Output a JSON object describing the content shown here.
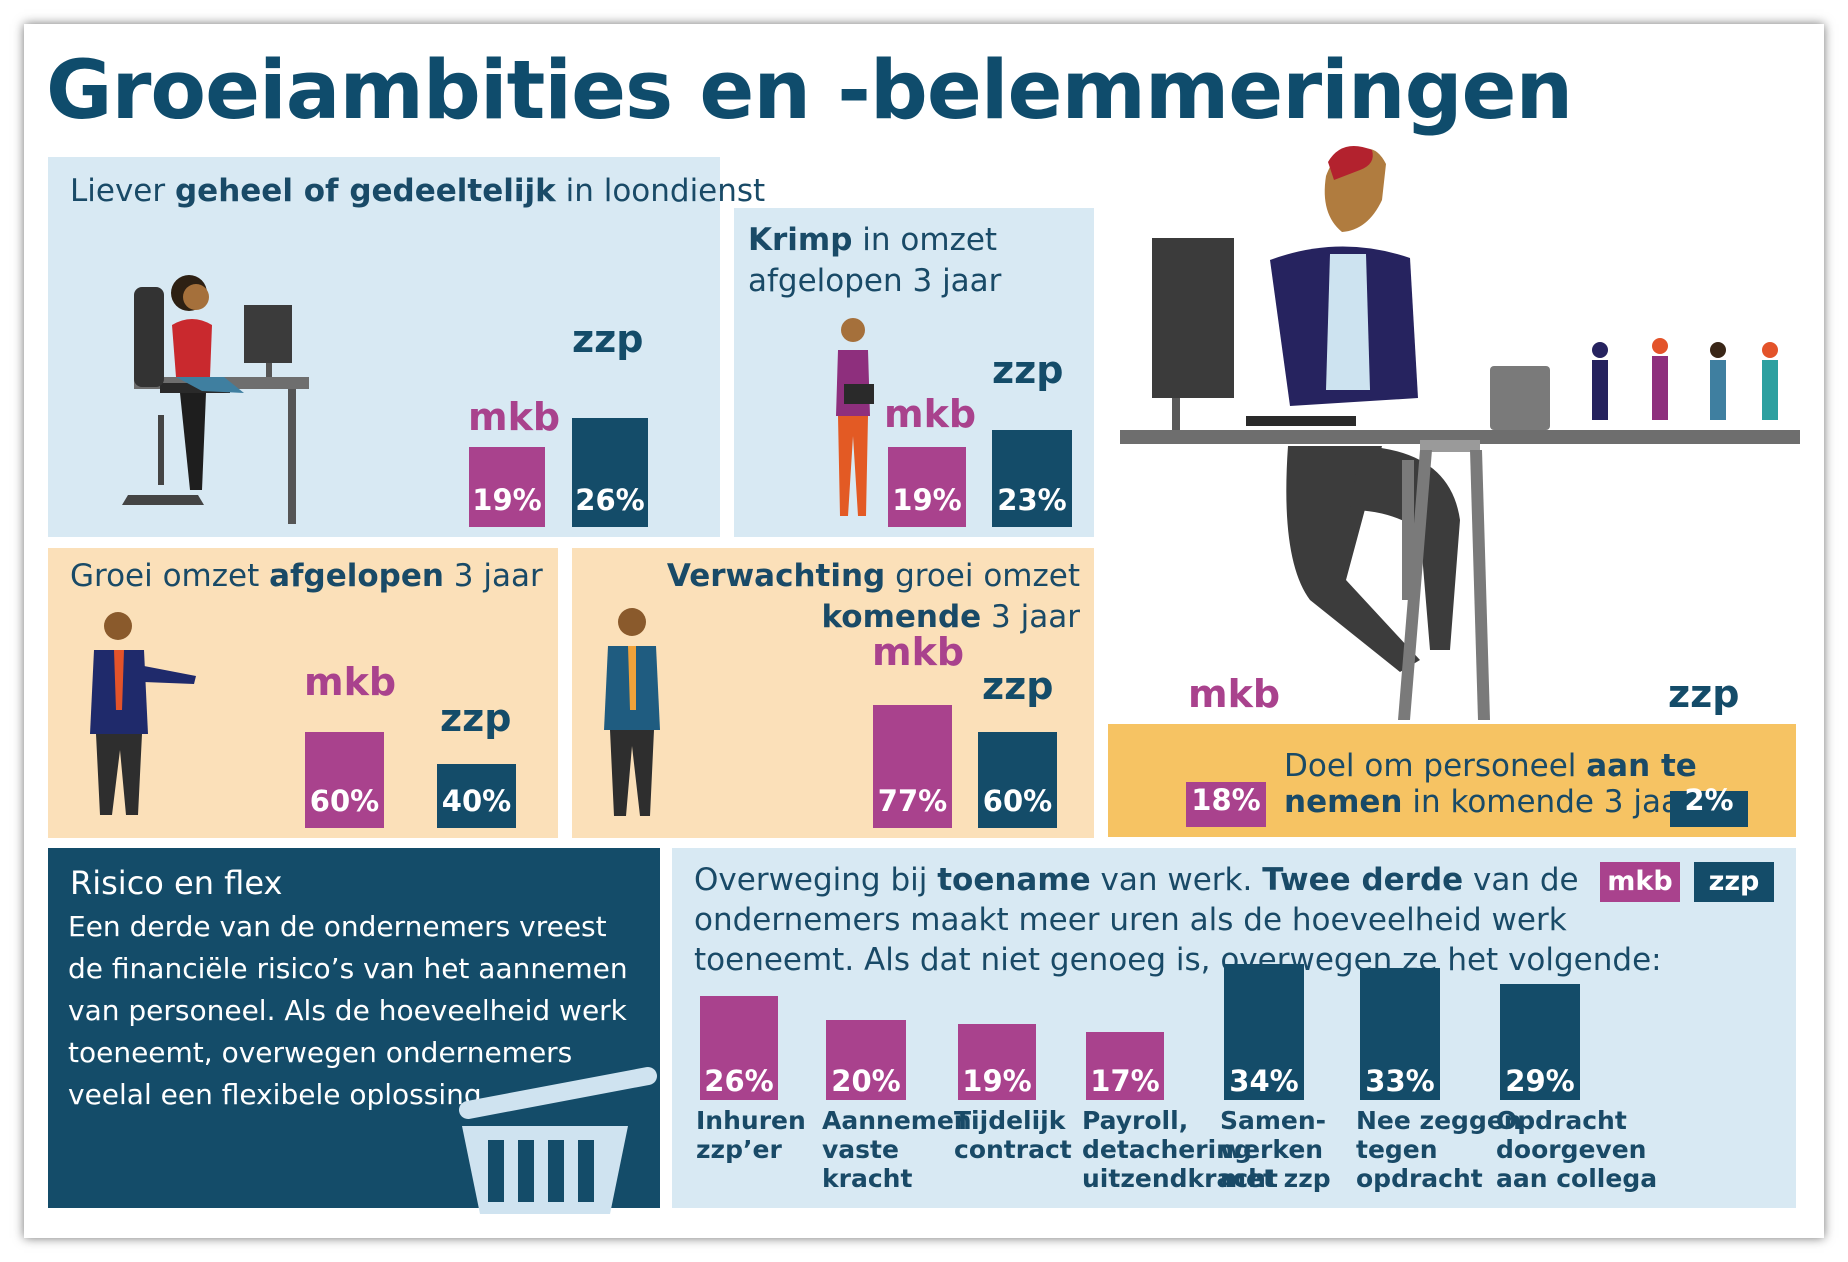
{
  "title": "Groeiambities en -belemmeringen",
  "colors": {
    "mkb": "#a9428d",
    "zzp": "#144c69",
    "light_blue": "#d8e9f3",
    "peach": "#fbe0b9",
    "orange": "#f6c363"
  },
  "labels": {
    "mkb": "mkb",
    "zzp": "zzp"
  },
  "panel_loondienst": {
    "pre": "Liever ",
    "bold": "geheel of gedeeltelijk",
    "post": " in loondienst",
    "mkb_label": "19%",
    "zzp_label": "26%"
  },
  "panel_krimp": {
    "bold": "Krimp",
    "line1": " in omzet",
    "line2": "afgelopen 3 jaar",
    "mkb_label": "19%",
    "zzp_label": "23%"
  },
  "panel_groei": {
    "pre": "Groei omzet ",
    "bold": "afgelopen",
    "post": " 3 jaar",
    "mkb_label": "60%",
    "zzp_label": "40%"
  },
  "panel_verwachting": {
    "bold1": "Verwachting",
    "line1": " groei omzet",
    "bold2": "komende",
    "line2": " 3 jaar",
    "mkb_label": "77%",
    "zzp_label": "60%"
  },
  "panel_personeel": {
    "pre": "Doel om personeel ",
    "bold1": "aan te",
    "bold2": "nemen",
    "post": " in komende 3 jaar",
    "mkb_label": "18%",
    "zzp_label": "2%"
  },
  "panel_risico": {
    "title": "Risico en flex",
    "body": "Een derde van de ondernemers vreest de financiële risico’s van het aannemen van personeel. Als de hoeveelheid werk toeneemt, overwegen ondernemers veelal een flexibele oplossing."
  },
  "panel_overweging": {
    "t1": "Overweging bij ",
    "b1": "toename",
    "t2": " van werk. ",
    "b2": "Twee derde",
    "t3": " van de",
    "line2": "ondernemers maakt meer uren als de hoeveelheid werk",
    "line3": "toeneemt. Als dat niet genoeg is, overwegen ze het volgende:"
  },
  "chart_data": [
    {
      "type": "bar",
      "title": "Liever geheel of gedeeltelijk in loondienst",
      "categories": [
        "mkb",
        "zzp"
      ],
      "values": [
        19,
        26
      ],
      "unit": "%"
    },
    {
      "type": "bar",
      "title": "Krimp in omzet afgelopen 3 jaar",
      "categories": [
        "mkb",
        "zzp"
      ],
      "values": [
        19,
        23
      ],
      "unit": "%"
    },
    {
      "type": "bar",
      "title": "Groei omzet afgelopen 3 jaar",
      "categories": [
        "mkb",
        "zzp"
      ],
      "values": [
        60,
        40
      ],
      "unit": "%"
    },
    {
      "type": "bar",
      "title": "Verwachting groei omzet komende 3 jaar",
      "categories": [
        "mkb",
        "zzp"
      ],
      "values": [
        77,
        60
      ],
      "unit": "%"
    },
    {
      "type": "bar",
      "title": "Doel om personeel aan te nemen in komende 3 jaar",
      "categories": [
        "mkb",
        "zzp"
      ],
      "values": [
        18,
        2
      ],
      "unit": "%"
    },
    {
      "type": "bar",
      "title": "Overweging bij toename van werk",
      "categories": [
        "Inhuren zzp’er",
        "Aannemen vaste kracht",
        "Tijdelijk contract",
        "Payroll, detachering uitzendkracht",
        "Samen-werken met zzp",
        "Nee zeggen tegen opdracht",
        "Opdracht doorgeven aan collega"
      ],
      "values": [
        26,
        20,
        19,
        17,
        34,
        33,
        29
      ],
      "group": [
        "mkb",
        "mkb",
        "mkb",
        "mkb",
        "zzp",
        "zzp",
        "zzp"
      ],
      "value_labels": [
        "26%",
        "20%",
        "19%",
        "17%",
        "34%",
        "33%",
        "29%"
      ],
      "category_lines": [
        [
          "Inhuren",
          "zzp’er"
        ],
        [
          "Aannemen",
          "vaste",
          "kracht"
        ],
        [
          "Tijdelijk",
          "contract"
        ],
        [
          "Payroll,",
          "detachering",
          "uitzendkracht"
        ],
        [
          "Samen-",
          "werken",
          "met zzp"
        ],
        [
          "Nee zeggen",
          "tegen",
          "opdracht"
        ],
        [
          "Opdracht",
          "doorgeven",
          "aan collega"
        ]
      ],
      "unit": "%"
    }
  ]
}
